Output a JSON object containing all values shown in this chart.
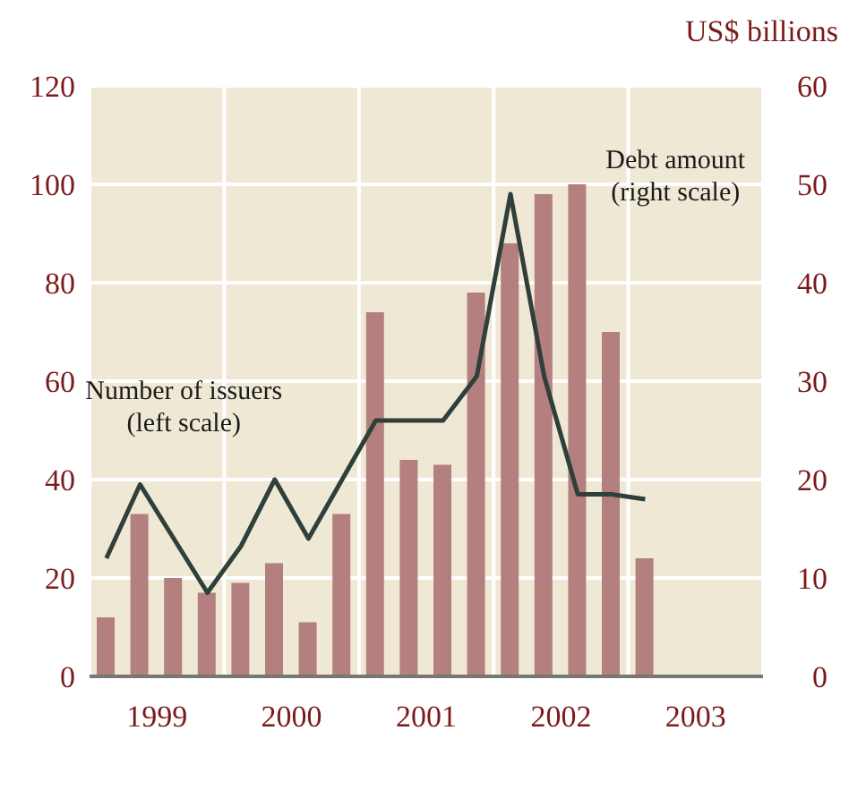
{
  "chart_data": {
    "type": "bar",
    "y2label": "US$ billions",
    "x": [
      1999.125,
      1999.375,
      1999.625,
      1999.875,
      2000.125,
      2000.375,
      2000.625,
      2000.875,
      2001.125,
      2001.375,
      2001.625,
      2001.875,
      2002.125,
      2002.375,
      2002.625,
      2002.875,
      2003.125
    ],
    "series": [
      {
        "name": "Debt amount (right scale)",
        "axis": "y2",
        "color": "#b47f7f",
        "values": [
          6,
          16.5,
          10,
          8.5,
          9.5,
          11.5,
          5.5,
          16.5,
          37,
          22,
          21.5,
          39,
          44,
          49,
          50,
          35,
          12
        ]
      },
      {
        "name": "Number of issuers (left scale)",
        "type": "line",
        "color": "#2f3f3a",
        "values": [
          24,
          39,
          28,
          17,
          26.5,
          40,
          28,
          40,
          52,
          52,
          52,
          61,
          98,
          61,
          37,
          37,
          36
        ]
      }
    ],
    "xlim": [
      1999,
      2004
    ],
    "xticks": [
      {
        "value": 1999,
        "label": null
      },
      {
        "value": 1999.5,
        "label": "1999"
      },
      {
        "value": 2000,
        "label": null
      },
      {
        "value": 2000.5,
        "label": "2000"
      },
      {
        "value": 2001,
        "label": null
      },
      {
        "value": 2001.5,
        "label": "2001"
      },
      {
        "value": 2002,
        "label": null
      },
      {
        "value": 2002.5,
        "label": "2002"
      },
      {
        "value": 2003,
        "label": null
      },
      {
        "value": 2003.5,
        "label": "2003"
      },
      {
        "value": 2004,
        "label": null
      }
    ],
    "ylim": [
      0,
      120
    ],
    "yticks": [
      0,
      20,
      40,
      60,
      80,
      100,
      120
    ],
    "y2lim": [
      0,
      60
    ],
    "y2ticks": [
      0,
      10,
      20,
      30,
      40,
      50,
      60
    ],
    "grid": true,
    "marker": "none",
    "line_style": "solid"
  }
}
